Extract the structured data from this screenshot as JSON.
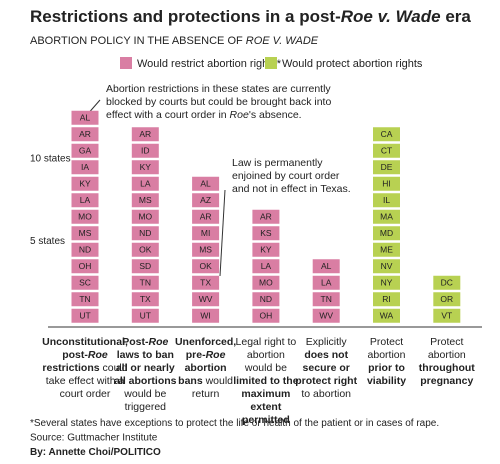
{
  "chart_data": {
    "type": "tiles",
    "title": [
      [
        "Restrictions and protections in a post-",
        {
          "text": "Roe v. Wade",
          "italic": true
        },
        " era"
      ]
    ],
    "subtitle": [
      [
        "ABORTION POLICY IN THE ABSENCE OF ",
        {
          "text": "ROE V. WADE",
          "italic": true
        }
      ]
    ],
    "ylim": [
      0,
      13
    ],
    "yticks": [
      {
        "value": 5,
        "label": "5 states"
      },
      {
        "value": 10,
        "label": "10 states"
      }
    ],
    "series": [
      {
        "name": "Would restrict abortion rights*",
        "color": "#d97ea3",
        "categories": [
          {
            "label": [
              [
                {
                  "text": "Unconstitutional,",
                  "bold": true
                }
              ],
              [
                {
                  "text": "post-",
                  "bold": true
                },
                {
                  "text": "Roe",
                  "bold": true,
                  "italic": true
                }
              ],
              [
                {
                  "text": "restrictions",
                  "bold": true
                },
                " could"
              ],
              [
                "take effect with a"
              ],
              [
                "court order"
              ]
            ],
            "states": [
              "AL",
              "AR",
              "GA",
              "IA",
              "KY",
              "LA",
              "MO",
              "MS",
              "ND",
              "OH",
              "SC",
              "TN",
              "UT"
            ]
          },
          {
            "label": [
              [
                {
                  "text": "Post-",
                  "bold": true
                },
                {
                  "text": "Roe",
                  "bold": true,
                  "italic": true
                }
              ],
              [
                {
                  "text": "laws to ban",
                  "bold": true
                }
              ],
              [
                {
                  "text": "all or nearly",
                  "bold": true
                }
              ],
              [
                {
                  "text": "all abortions",
                  "bold": true
                }
              ],
              [
                "would be"
              ],
              [
                "triggered"
              ]
            ],
            "states": [
              "AR",
              "ID",
              "KY",
              "LA",
              "MS",
              "MO",
              "ND",
              "OK",
              "SD",
              "TN",
              "TX",
              "UT"
            ]
          },
          {
            "label": [
              [
                {
                  "text": "Unenforced,",
                  "bold": true
                }
              ],
              [
                {
                  "text": "pre-",
                  "bold": true
                },
                {
                  "text": "Roe",
                  "bold": true,
                  "italic": true
                }
              ],
              [
                {
                  "text": "abortion",
                  "bold": true
                }
              ],
              [
                {
                  "text": "bans",
                  "bold": true
                },
                " would"
              ],
              [
                "return"
              ]
            ],
            "states": [
              "AL",
              "AZ",
              "AR",
              "MI",
              "MS",
              "OK",
              "TX",
              "WV",
              "WI"
            ]
          },
          {
            "label": [
              [
                "Legal right to"
              ],
              [
                "abortion"
              ],
              [
                "would be"
              ],
              [
                {
                  "text": "limited to the",
                  "bold": true
                }
              ],
              [
                {
                  "text": "maximum",
                  "bold": true
                }
              ],
              [
                {
                  "text": "extent",
                  "bold": true
                }
              ],
              [
                {
                  "text": "permitted",
                  "bold": true
                }
              ]
            ],
            "states": [
              "AR",
              "KS",
              "KY",
              "LA",
              "MO",
              "ND",
              "OH"
            ]
          },
          {
            "label": [
              [
                "Explicitly"
              ],
              [
                {
                  "text": "does not",
                  "bold": true
                }
              ],
              [
                {
                  "text": "secure or",
                  "bold": true
                }
              ],
              [
                {
                  "text": "protect right",
                  "bold": true
                }
              ],
              [
                "to abortion"
              ]
            ],
            "states": [
              "AL",
              "LA",
              "TN",
              "WV"
            ]
          }
        ]
      },
      {
        "name": "Would protect abortion rights",
        "color": "#b8d152",
        "categories": [
          {
            "label": [
              [
                "Protect"
              ],
              [
                "abortion"
              ],
              [
                {
                  "text": "prior to",
                  "bold": true
                }
              ],
              [
                {
                  "text": "viability",
                  "bold": true
                }
              ]
            ],
            "states": [
              "CA",
              "CT",
              "DE",
              "HI",
              "IL",
              "MA",
              "MD",
              "ME",
              "NV",
              "NY",
              "RI",
              "WA"
            ]
          },
          {
            "label": [
              [
                "Protect"
              ],
              [
                "abortion"
              ],
              [
                {
                  "text": "throughout",
                  "bold": true
                }
              ],
              [
                {
                  "text": "pregnancy",
                  "bold": true
                }
              ]
            ],
            "states": [
              "DC",
              "OR",
              "VT"
            ]
          }
        ]
      }
    ],
    "annotations": [
      {
        "lines": [
          [
            "Abortion restrictions in these states are currently"
          ],
          [
            "blocked by courts but could be brought back into"
          ],
          [
            "effect with a court order in ",
            {
              "text": "Roe",
              "italic": true
            },
            "'s absence."
          ]
        ]
      },
      {
        "lines": [
          [
            "Law is permanently"
          ],
          [
            "enjoined by court order"
          ],
          [
            "and not in effect in Texas."
          ]
        ]
      }
    ],
    "footnotes": [
      [
        "*Several states have exceptions to protect the life or health of the patient or in cases of rape."
      ],
      [
        "Source: Guttmacher Institute"
      ],
      [
        {
          "text": "By: Annette Choi/POLITICO",
          "bold": true
        }
      ]
    ]
  }
}
